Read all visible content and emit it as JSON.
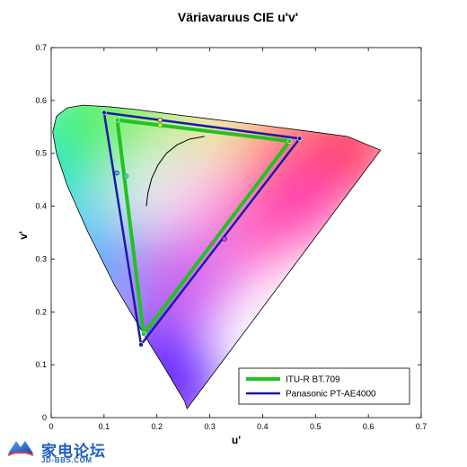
{
  "chart_data": {
    "type": "scatter",
    "title": "Väriavaruus CIE u'v'",
    "xlabel": "u'",
    "ylabel": "v'",
    "xlim": [
      0,
      0.7
    ],
    "ylim": [
      0,
      0.7
    ],
    "xticks": [
      "0",
      "0.1",
      "0.2",
      "0.3",
      "0.4",
      "0.5",
      "0.6",
      "0.7"
    ],
    "yticks": [
      "0",
      "0.1",
      "0.2",
      "0.3",
      "0.4",
      "0.5",
      "0.6",
      "0.7"
    ],
    "grid": false,
    "legend_position": "bottom-right",
    "series": [
      {
        "name": "ITU-R BT.709",
        "color": "#22c222",
        "points": [
          [
            0.451,
            0.523
          ],
          [
            0.125,
            0.563
          ],
          [
            0.175,
            0.158
          ]
        ],
        "markers": [
          [
            0.206,
            0.553
          ],
          [
            0.142,
            0.457
          ],
          [
            0.305,
            0.33
          ]
        ]
      },
      {
        "name": "Panasonic PT-AE4000",
        "color": "#1a1aa8",
        "points": [
          [
            0.47,
            0.528
          ],
          [
            0.1,
            0.577
          ],
          [
            0.17,
            0.138
          ]
        ],
        "markers": [
          [
            0.206,
            0.563
          ],
          [
            0.124,
            0.463
          ],
          [
            0.328,
            0.338
          ]
        ]
      }
    ],
    "planckian_locus": [
      [
        0.18,
        0.4
      ],
      [
        0.183,
        0.425
      ],
      [
        0.19,
        0.452
      ],
      [
        0.202,
        0.478
      ],
      [
        0.218,
        0.5
      ],
      [
        0.238,
        0.516
      ],
      [
        0.262,
        0.527
      ],
      [
        0.29,
        0.532
      ]
    ],
    "spectral_locus": [
      [
        0.257,
        0.017
      ],
      [
        0.253,
        0.03
      ],
      [
        0.238,
        0.055
      ],
      [
        0.214,
        0.095
      ],
      [
        0.18,
        0.15
      ],
      [
        0.12,
        0.25
      ],
      [
        0.07,
        0.35
      ],
      [
        0.03,
        0.44
      ],
      [
        0.01,
        0.5
      ],
      [
        0.003,
        0.54
      ],
      [
        0.01,
        0.57
      ],
      [
        0.03,
        0.586
      ],
      [
        0.06,
        0.591
      ],
      [
        0.11,
        0.588
      ],
      [
        0.16,
        0.583
      ],
      [
        0.22,
        0.575
      ],
      [
        0.3,
        0.565
      ],
      [
        0.4,
        0.553
      ],
      [
        0.5,
        0.54
      ],
      [
        0.56,
        0.532
      ],
      [
        0.623,
        0.506
      ]
    ]
  },
  "watermark": {
    "cn": "家电论坛",
    "en": "JD-BBS.COM"
  }
}
